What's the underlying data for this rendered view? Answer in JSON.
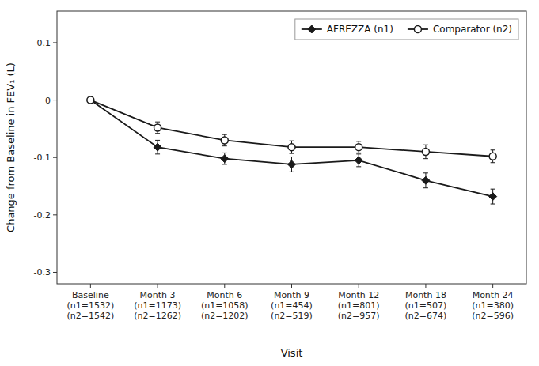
{
  "chart_data": {
    "type": "line",
    "xlabel": "Visit",
    "ylabel": "Change from Baseline in FEV₁ (L)",
    "categories": [
      "Baseline\n(n1=1532)\n(n2=1542)",
      "Month 3\n(n1=1173)\n(n2=1262)",
      "Month 6\n(n1=1058)\n(n2=1202)",
      "Month 9\n(n1=454)\n(n2=519)",
      "Month 12\n(n1=801)\n(n2=957)",
      "Month 18\n(n1=507)\n(n2=674)",
      "Month 24\n(n1=380)\n(n2=596)"
    ],
    "series": [
      {
        "name": "AFREZZA (n1)",
        "color": "#1a1a1a",
        "marker": "diamond",
        "values": [
          0.0,
          -0.082,
          -0.102,
          -0.112,
          -0.105,
          -0.14,
          -0.168
        ],
        "errors": [
          0.0,
          0.012,
          0.01,
          0.013,
          0.011,
          0.013,
          0.013
        ]
      },
      {
        "name": "Comparator (n2)",
        "color": "#1a1a1a",
        "marker": "open-circle",
        "values": [
          0.0,
          -0.048,
          -0.07,
          -0.082,
          -0.082,
          -0.09,
          -0.098
        ],
        "errors": [
          0.0,
          0.01,
          0.01,
          0.011,
          0.01,
          0.012,
          0.011
        ]
      }
    ],
    "ylim": [
      -0.32,
      0.155
    ],
    "yticks": [
      -0.3,
      -0.2,
      -0.1,
      0,
      0.1
    ],
    "grid": false,
    "legend": "upper-right"
  }
}
